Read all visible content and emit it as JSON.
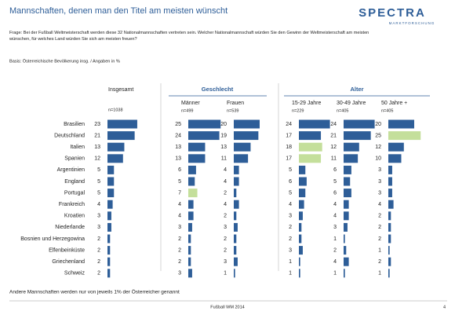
{
  "header": {
    "title": "Mannschaften, denen man den Titel am meisten wünscht",
    "logo_name": "SPECTRA",
    "logo_sub": "MARKTFORSCHUNG"
  },
  "question": "Frage: Bei der Fußball Weltmeisterschaft werden diese 32 Nationalmannschaften vertreten sein. Welcher Nationalmannschaft würden Sie den Gewinn der Weltmeisterschaft am meisten wünschen, für welches Land würden Sie sich am meisten freuen?",
  "basis": "Basis: Österreichische Bevölkerung insg. / Angaben in %",
  "groups": [
    "Geschlecht",
    "Alter"
  ],
  "rows": [
    "Brasilien",
    "Deutschland",
    "Italien",
    "Spanien",
    "Argentinien",
    "England",
    "Portugal",
    "Frankreich",
    "Kroatien",
    "Niederlande",
    "Bosnien und Herzegowina",
    "Elfenbeinküste",
    "Griechenland",
    "Schweiz"
  ],
  "bar_color": "#2e5e98",
  "highlight_color": "#c4df9b",
  "columns": [
    {
      "label": "Insgesamt",
      "n": "n=1038",
      "values": [
        23,
        21,
        13,
        12,
        5,
        5,
        5,
        4,
        3,
        3,
        2,
        2,
        2,
        2
      ],
      "highlighted": [
        false,
        false,
        false,
        false,
        false,
        false,
        false,
        false,
        false,
        false,
        false,
        false,
        false,
        false
      ]
    },
    {
      "label": "Männer",
      "n": "n=499",
      "values": [
        25,
        24,
        13,
        13,
        6,
        5,
        7,
        4,
        4,
        3,
        2,
        2,
        2,
        3
      ],
      "highlighted": [
        false,
        false,
        false,
        false,
        false,
        false,
        true,
        false,
        false,
        false,
        false,
        false,
        false,
        false
      ]
    },
    {
      "label": "Frauen",
      "n": "n=539",
      "values": [
        20,
        19,
        13,
        11,
        4,
        4,
        2,
        4,
        2,
        3,
        2,
        2,
        3,
        1
      ],
      "highlighted": [
        false,
        false,
        false,
        false,
        false,
        false,
        false,
        false,
        false,
        false,
        false,
        false,
        false,
        false
      ]
    },
    {
      "label": "15-29 Jahre",
      "n": "n=229",
      "values": [
        24,
        17,
        18,
        17,
        5,
        6,
        5,
        4,
        3,
        2,
        2,
        3,
        1,
        1
      ],
      "highlighted": [
        false,
        false,
        true,
        true,
        false,
        false,
        false,
        false,
        false,
        false,
        false,
        false,
        false,
        false
      ]
    },
    {
      "label": "30-49 Jahre",
      "n": "n=405",
      "values": [
        24,
        21,
        12,
        11,
        6,
        5,
        6,
        4,
        4,
        3,
        1,
        2,
        4,
        1
      ],
      "highlighted": [
        false,
        false,
        false,
        false,
        false,
        false,
        false,
        false,
        false,
        false,
        false,
        false,
        false,
        false
      ]
    },
    {
      "label": "50 Jahre +",
      "n": "n=405",
      "values": [
        20,
        25,
        12,
        10,
        3,
        3,
        3,
        4,
        2,
        2,
        2,
        1,
        2,
        1
      ],
      "highlighted": [
        false,
        true,
        false,
        false,
        false,
        false,
        false,
        false,
        false,
        false,
        false,
        false,
        false,
        false
      ]
    }
  ],
  "note": "Andere Mannschaften werden nur von jeweils 1% der Österreicher genannt",
  "footer": {
    "center": "Fußball WM 2014",
    "page": 4
  }
}
